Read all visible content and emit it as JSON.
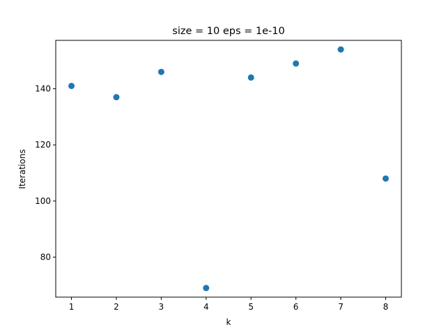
{
  "chart_data": {
    "type": "scatter",
    "title": "size = 10 eps = 1e-10",
    "xlabel": "k",
    "ylabel": "Iterations",
    "x": [
      1,
      2,
      3,
      4,
      5,
      6,
      7,
      8
    ],
    "y": [
      141,
      137,
      146,
      69,
      144,
      149,
      154,
      108
    ],
    "xticks": [
      1,
      2,
      3,
      4,
      5,
      6,
      7,
      8
    ],
    "yticks": [
      80,
      100,
      120,
      140
    ],
    "xlim": [
      0.65,
      8.35
    ],
    "ylim": [
      65.75,
      157.25
    ],
    "grid": false,
    "marker_color": "#1f77b4"
  }
}
